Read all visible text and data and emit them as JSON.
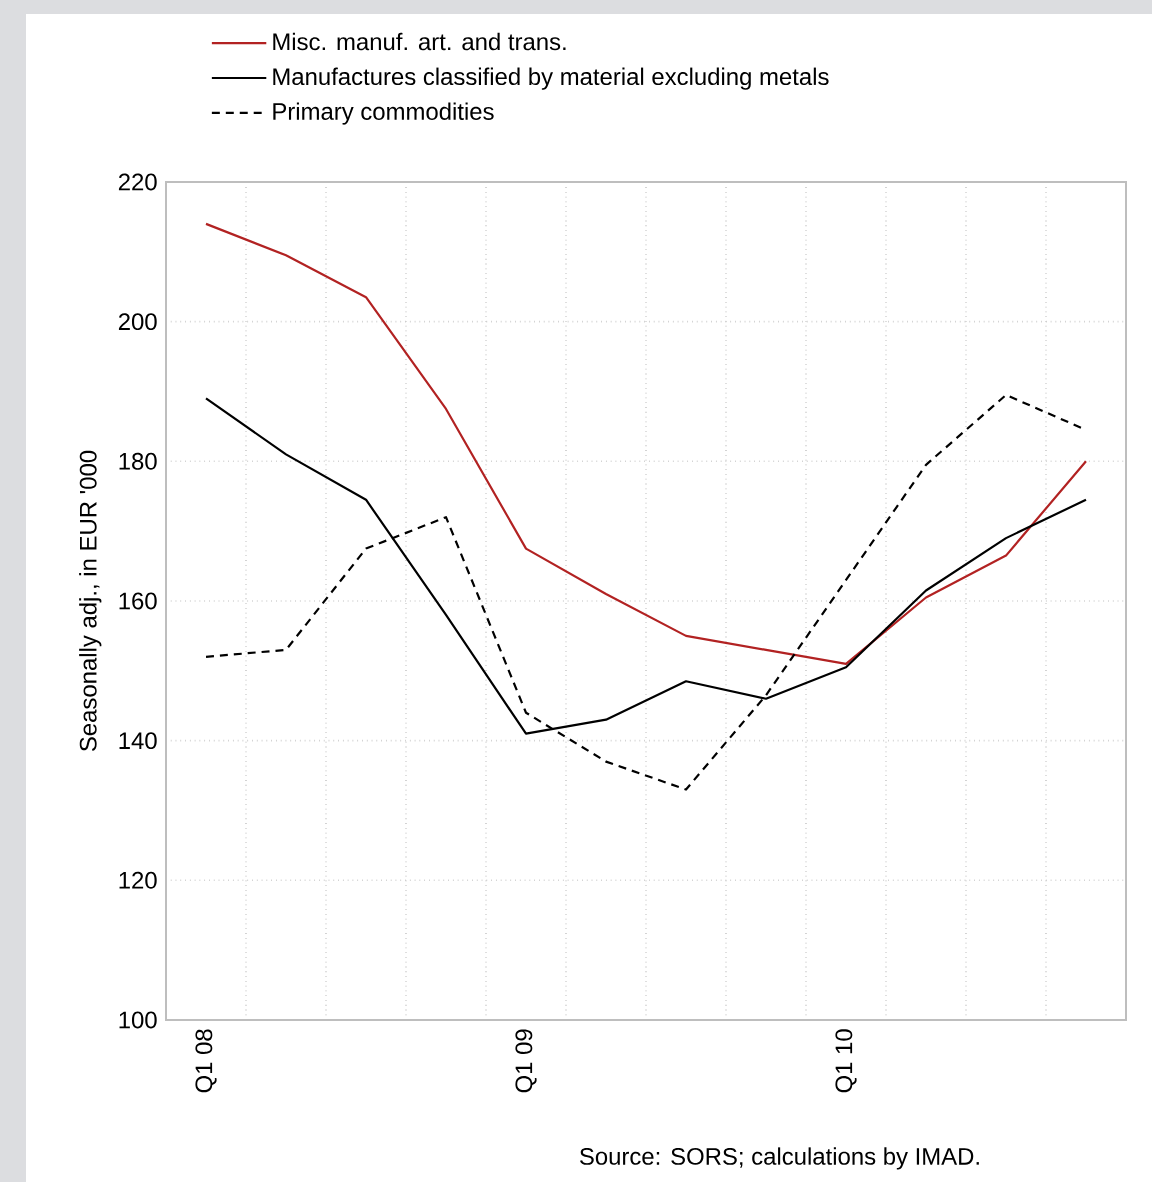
{
  "chart_data": {
    "type": "line",
    "ylabel": "Seasonally adj., in EUR '000",
    "categories": [
      "Q1 08",
      null,
      null,
      null,
      "Q1 09",
      null,
      null,
      null,
      "Q1 10",
      null,
      null,
      null
    ],
    "series": [
      {
        "name": "Misc. manuf. art. and trans.",
        "color": "#b22222",
        "line_style": "solid",
        "values": [
          214,
          209.5,
          203.5,
          187.5,
          167.5,
          161,
          155,
          153,
          151,
          160.5,
          166.5,
          180
        ]
      },
      {
        "name": "Manufactures classified by material excluding metals",
        "color": "#000000",
        "line_style": "solid",
        "values": [
          189,
          181,
          174.5,
          158,
          141,
          143,
          148.5,
          146,
          150.5,
          161.5,
          169,
          174.5
        ]
      },
      {
        "name": "Primary commodities",
        "color": "#000000",
        "line_style": "dashed",
        "values": [
          152,
          153,
          167.5,
          172,
          144,
          137,
          133,
          146.5,
          163,
          179.5,
          189.5,
          184.5
        ]
      }
    ],
    "ylim": [
      100,
      220
    ],
    "yticks": [
      100,
      120,
      140,
      160,
      180,
      200,
      220
    ],
    "grid": true,
    "legend": "top",
    "marker": "none",
    "annotations": [
      "Source: SORS; calculations by IMAD."
    ]
  }
}
